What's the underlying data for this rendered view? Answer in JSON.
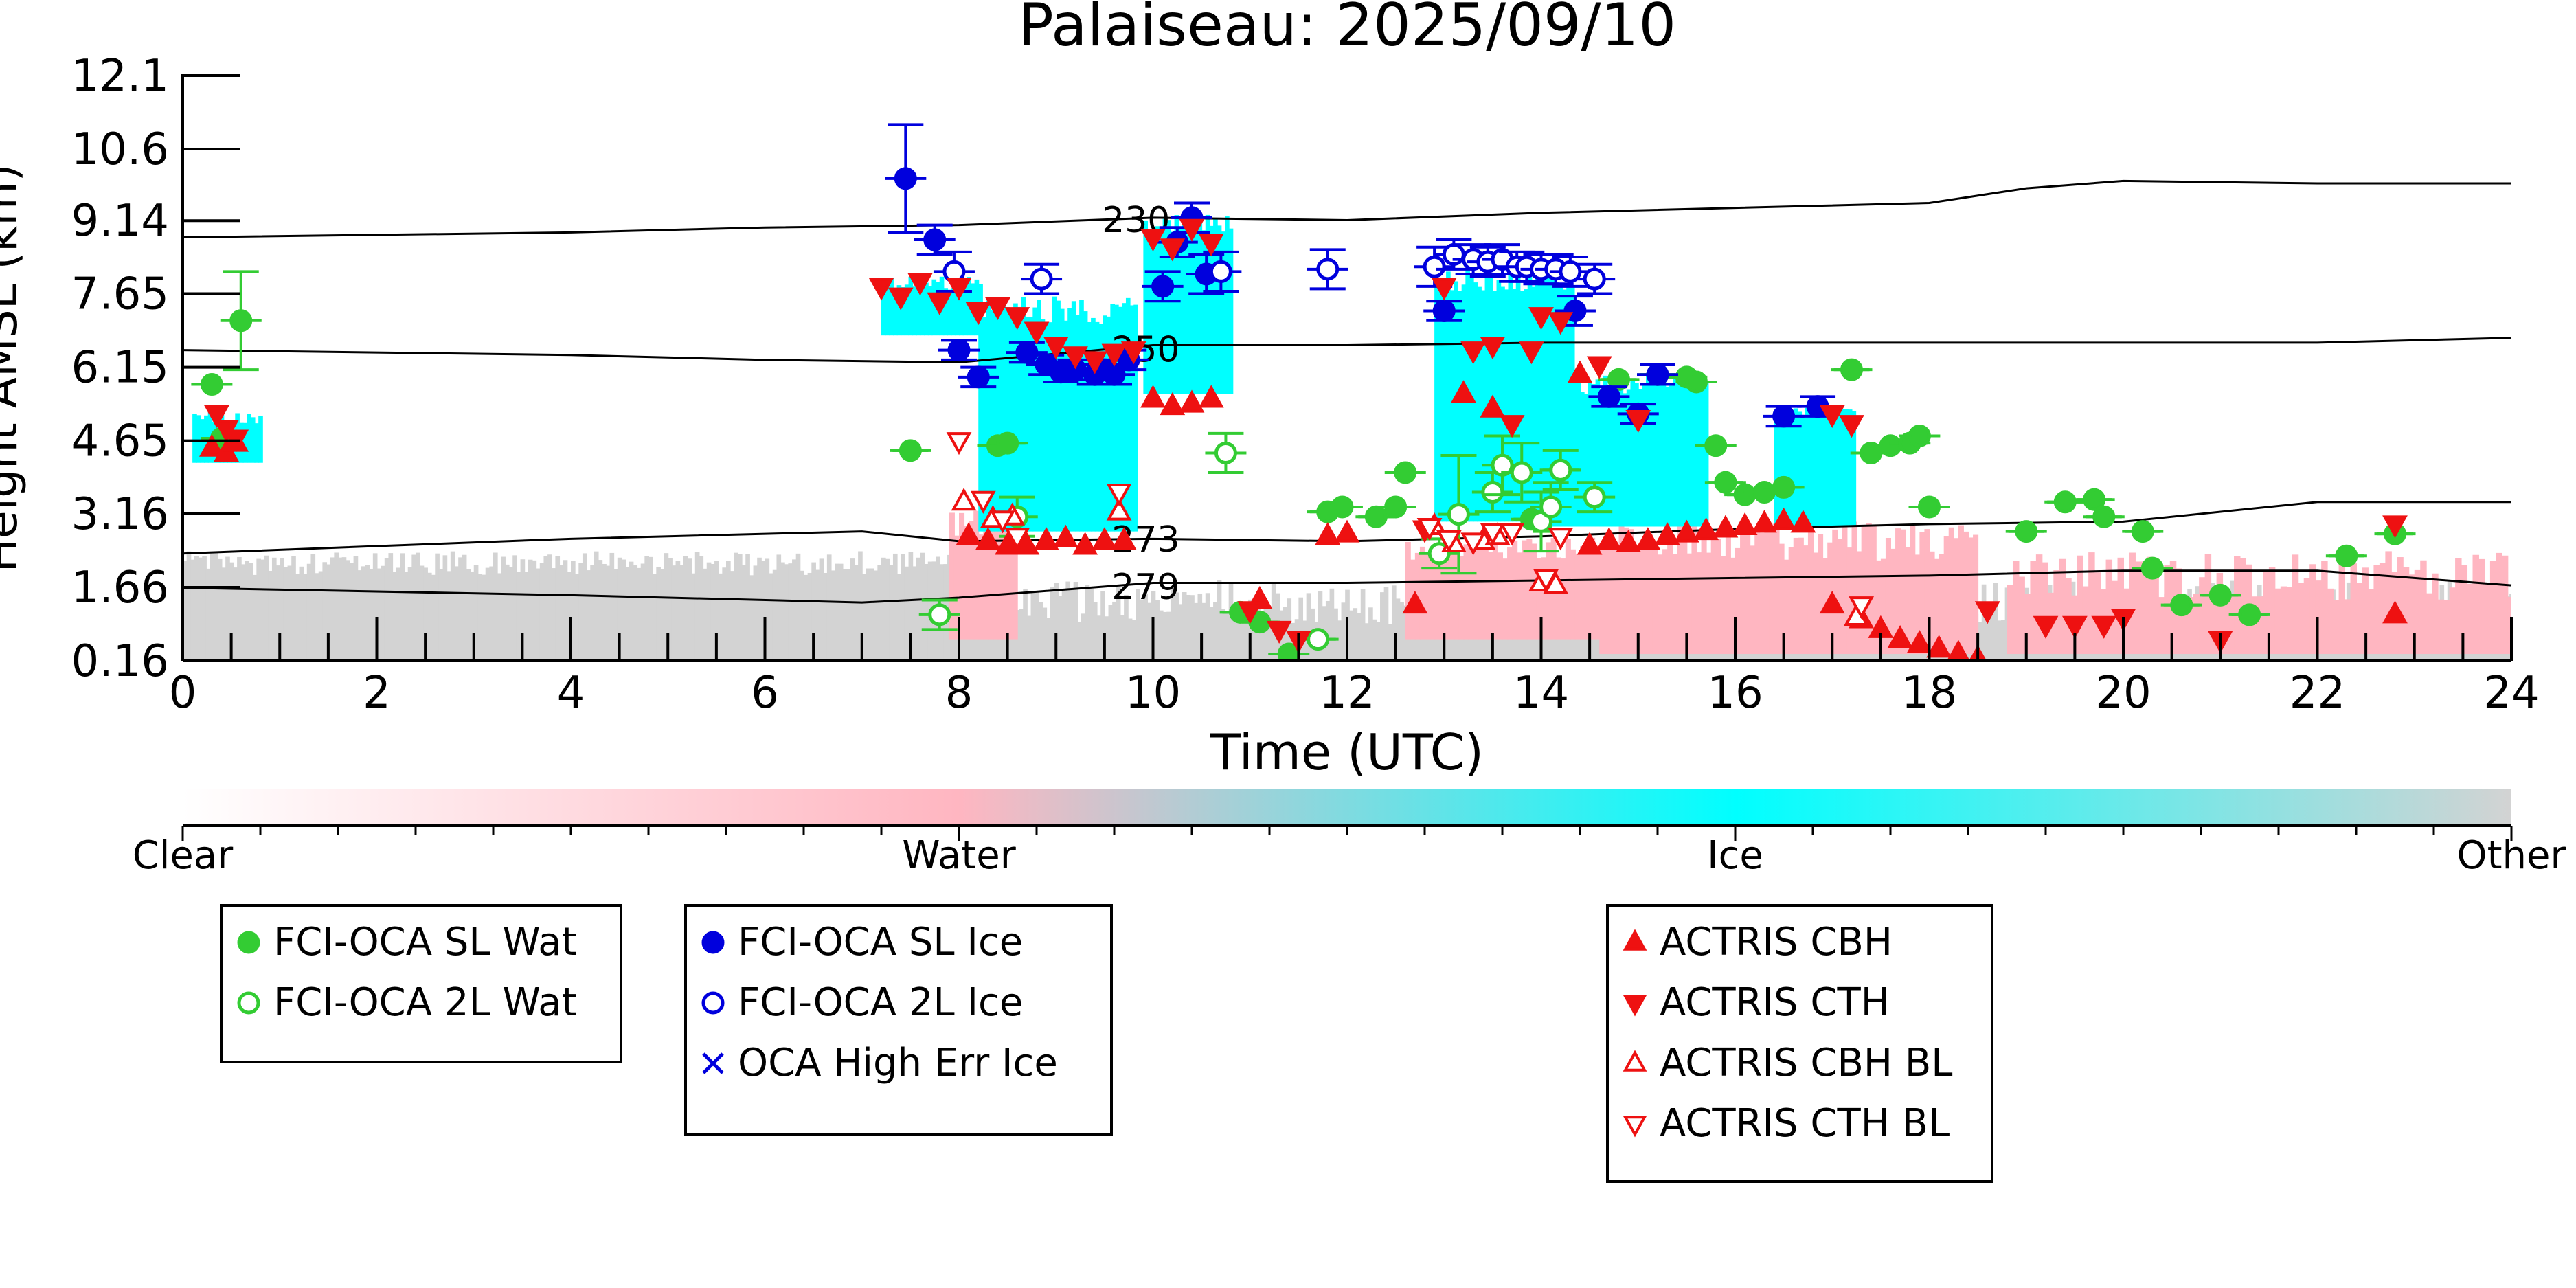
{
  "chart_data": {
    "type": "scatter",
    "title": "Palaiseau: 2025/09/10",
    "xlabel": "Time (UTC)",
    "ylabel": "Height AMSL (km)",
    "xlim": [
      0,
      24
    ],
    "ylim": [
      0.16,
      12.1
    ],
    "x_ticks": [
      "0",
      "2",
      "4",
      "6",
      "8",
      "10",
      "12",
      "14",
      "16",
      "18",
      "20",
      "22",
      "24"
    ],
    "y_ticks": [
      "0.16",
      "1.66",
      "3.16",
      "4.65",
      "6.15",
      "7.65",
      "9.14",
      "10.6",
      "12.1"
    ],
    "y_tick_values": [
      0.16,
      1.66,
      3.16,
      4.65,
      6.15,
      7.65,
      9.14,
      10.6,
      12.1
    ],
    "grid": false,
    "colorbar": {
      "labels": [
        "Clear",
        "Water",
        "Ice",
        "Other"
      ],
      "colors": {
        "clear": "#ffffff",
        "water": "#ffb6c1",
        "ice": "#00ffff",
        "other": "#d3d3d3"
      }
    },
    "contours": [
      {
        "label": "230",
        "label_x": 9.4,
        "points": [
          [
            0,
            8.8
          ],
          [
            4,
            8.9
          ],
          [
            6,
            9.0
          ],
          [
            8,
            9.05
          ],
          [
            10,
            9.2
          ],
          [
            12,
            9.15
          ],
          [
            14,
            9.3
          ],
          [
            18,
            9.5
          ],
          [
            19,
            9.8
          ],
          [
            20,
            9.95
          ],
          [
            22,
            9.9
          ],
          [
            24,
            9.9
          ]
        ]
      },
      {
        "label": "250",
        "label_x": 9.5,
        "points": [
          [
            0,
            6.5
          ],
          [
            4,
            6.4
          ],
          [
            6,
            6.3
          ],
          [
            8,
            6.25
          ],
          [
            10,
            6.6
          ],
          [
            12,
            6.6
          ],
          [
            14,
            6.65
          ],
          [
            18,
            6.65
          ],
          [
            22,
            6.65
          ],
          [
            24,
            6.75
          ]
        ]
      },
      {
        "label": "273",
        "label_x": 9.5,
        "points": [
          [
            0,
            2.35
          ],
          [
            4,
            2.65
          ],
          [
            7,
            2.8
          ],
          [
            8,
            2.6
          ],
          [
            10,
            2.65
          ],
          [
            12,
            2.6
          ],
          [
            14,
            2.7
          ],
          [
            16,
            2.85
          ],
          [
            18,
            2.95
          ],
          [
            20,
            3.0
          ],
          [
            22,
            3.4
          ],
          [
            24,
            3.4
          ]
        ]
      },
      {
        "label": "279",
        "label_x": 9.5,
        "points": [
          [
            0,
            1.65
          ],
          [
            4,
            1.5
          ],
          [
            7,
            1.35
          ],
          [
            8,
            1.45
          ],
          [
            10,
            1.75
          ],
          [
            12,
            1.75
          ],
          [
            14,
            1.8
          ],
          [
            16,
            1.85
          ],
          [
            18,
            1.9
          ],
          [
            20,
            2.0
          ],
          [
            22,
            2.0
          ],
          [
            24,
            1.7
          ]
        ]
      }
    ],
    "series": [
      {
        "name": "FCI-OCA SL Wat",
        "marker": "circle-filled",
        "color": "#33cc33",
        "points": [
          [
            0.3,
            5.8,
            0
          ],
          [
            0.6,
            7.1,
            1.0
          ],
          [
            0.4,
            4.7,
            0
          ],
          [
            7.5,
            4.45,
            0
          ],
          [
            8.4,
            4.55,
            0
          ],
          [
            8.5,
            4.6,
            0
          ],
          [
            10.9,
            1.15,
            0
          ],
          [
            11.1,
            0.95,
            0
          ],
          [
            11.4,
            0.3,
            0
          ],
          [
            11.8,
            3.2,
            0
          ],
          [
            11.95,
            3.3,
            0
          ],
          [
            12.3,
            3.1,
            0
          ],
          [
            12.5,
            3.3,
            0
          ],
          [
            12.6,
            4.0,
            0
          ],
          [
            13.9,
            3.05,
            0
          ],
          [
            14.2,
            4.05,
            0
          ],
          [
            14.8,
            5.9,
            0
          ],
          [
            15.2,
            6.0,
            0
          ],
          [
            15.5,
            5.95,
            0
          ],
          [
            15.6,
            5.85,
            0
          ],
          [
            15.8,
            4.55,
            0
          ],
          [
            15.9,
            3.8,
            0
          ],
          [
            16.1,
            3.55,
            0
          ],
          [
            16.3,
            3.6,
            0
          ],
          [
            16.5,
            3.7,
            0
          ],
          [
            17.2,
            6.1,
            0
          ],
          [
            17.4,
            4.4,
            0
          ],
          [
            17.6,
            4.55,
            0
          ],
          [
            17.8,
            4.6,
            0
          ],
          [
            17.9,
            4.75,
            0
          ],
          [
            18.0,
            3.3,
            0
          ],
          [
            19.0,
            2.8,
            0
          ],
          [
            19.4,
            3.4,
            0
          ],
          [
            19.7,
            3.45,
            0
          ],
          [
            19.8,
            3.1,
            0
          ],
          [
            20.2,
            2.8,
            0
          ],
          [
            20.3,
            2.05,
            0
          ],
          [
            20.6,
            1.3,
            0
          ],
          [
            21.0,
            1.5,
            0
          ],
          [
            21.3,
            1.1,
            0
          ],
          [
            22.3,
            2.3,
            0
          ],
          [
            22.8,
            2.75,
            0
          ]
        ]
      },
      {
        "name": "FCI-OCA 2L Wat",
        "marker": "circle-open",
        "color": "#33cc33",
        "points": [
          [
            7.8,
            1.1,
            0.3
          ],
          [
            8.6,
            3.1,
            0.4
          ],
          [
            10.75,
            4.4,
            0.4
          ],
          [
            11.7,
            0.6,
            0
          ],
          [
            12.95,
            2.35,
            0.3
          ],
          [
            13.15,
            3.15,
            1.2
          ],
          [
            13.5,
            3.6,
            0.4
          ],
          [
            13.6,
            4.15,
            0.6
          ],
          [
            13.8,
            4.0,
            0.6
          ],
          [
            14.0,
            3.0,
            0.6
          ],
          [
            14.1,
            3.3,
            0.5
          ],
          [
            14.2,
            4.05,
            0.4
          ],
          [
            14.55,
            3.5,
            0.3
          ]
        ]
      },
      {
        "name": "FCI-OCA SL Ice",
        "marker": "circle-filled",
        "color": "#0000dd",
        "points": [
          [
            7.45,
            10.0,
            1.1
          ],
          [
            7.75,
            8.75,
            0.3
          ],
          [
            8.0,
            6.5,
            0.2
          ],
          [
            8.2,
            5.95,
            0.2
          ],
          [
            8.7,
            6.45,
            0.2
          ],
          [
            8.9,
            6.2,
            0.2
          ],
          [
            9.05,
            6.05,
            0.2
          ],
          [
            9.2,
            6.1,
            0.2
          ],
          [
            9.4,
            6.0,
            0.2
          ],
          [
            9.5,
            6.1,
            0.2
          ],
          [
            9.6,
            6.0,
            0.2
          ],
          [
            9.75,
            6.3,
            0.2
          ],
          [
            10.1,
            7.8,
            0.3
          ],
          [
            10.25,
            8.7,
            0.3
          ],
          [
            10.4,
            9.2,
            0.3
          ],
          [
            10.55,
            8.05,
            0.4
          ],
          [
            13.0,
            7.3,
            0.2
          ],
          [
            14.35,
            7.3,
            0.3
          ],
          [
            14.7,
            5.55,
            0.2
          ],
          [
            15.0,
            5.2,
            0.2
          ],
          [
            15.2,
            6.0,
            0.2
          ],
          [
            16.5,
            5.15,
            0.2
          ],
          [
            16.85,
            5.35,
            0.2
          ]
        ]
      },
      {
        "name": "FCI-OCA 2L Ice",
        "marker": "circle-open",
        "color": "#0000dd",
        "points": [
          [
            7.95,
            8.1,
            0.4
          ],
          [
            8.85,
            7.95,
            0.3
          ],
          [
            10.7,
            8.1,
            0.4
          ],
          [
            11.8,
            8.15,
            0.4
          ],
          [
            12.9,
            8.2,
            0.4
          ],
          [
            13.1,
            8.45,
            0.3
          ],
          [
            13.3,
            8.35,
            0.3
          ],
          [
            13.45,
            8.3,
            0.3
          ],
          [
            13.6,
            8.35,
            0.3
          ],
          [
            13.75,
            8.2,
            0.3
          ],
          [
            13.85,
            8.2,
            0.3
          ],
          [
            14.0,
            8.15,
            0.3
          ],
          [
            14.15,
            8.15,
            0.3
          ],
          [
            14.3,
            8.1,
            0.3
          ],
          [
            14.55,
            7.95,
            0.3
          ]
        ]
      },
      {
        "name": "OCA High Err Ice",
        "marker": "x",
        "color": "#0000dd",
        "points": []
      },
      {
        "name": "ACTRIS CBH",
        "marker": "triangle-up-filled",
        "color": "#ee1111",
        "points": [
          [
            0.3,
            4.5
          ],
          [
            0.45,
            4.4
          ],
          [
            0.55,
            4.6
          ],
          [
            8.1,
            2.7
          ],
          [
            8.3,
            2.6
          ],
          [
            8.5,
            2.5
          ],
          [
            8.7,
            2.5
          ],
          [
            8.9,
            2.6
          ],
          [
            9.1,
            2.65
          ],
          [
            9.3,
            2.5
          ],
          [
            9.5,
            2.6
          ],
          [
            9.7,
            2.6
          ],
          [
            10.0,
            5.5
          ],
          [
            10.2,
            5.35
          ],
          [
            10.4,
            5.4
          ],
          [
            10.6,
            5.5
          ],
          [
            11.1,
            1.4
          ],
          [
            11.8,
            2.7
          ],
          [
            12.0,
            2.75
          ],
          [
            12.7,
            1.3
          ],
          [
            13.2,
            5.6
          ],
          [
            13.5,
            5.3
          ],
          [
            14.4,
            6.0
          ],
          [
            14.5,
            2.5
          ],
          [
            14.7,
            2.6
          ],
          [
            14.9,
            2.55
          ],
          [
            15.1,
            2.6
          ],
          [
            15.3,
            2.7
          ],
          [
            15.5,
            2.75
          ],
          [
            15.7,
            2.8
          ],
          [
            15.9,
            2.85
          ],
          [
            16.1,
            2.9
          ],
          [
            16.3,
            2.95
          ],
          [
            16.5,
            3.0
          ],
          [
            16.7,
            2.95
          ],
          [
            17.0,
            1.3
          ],
          [
            17.3,
            1.0
          ],
          [
            17.5,
            0.8
          ],
          [
            17.7,
            0.6
          ],
          [
            17.9,
            0.5
          ],
          [
            18.1,
            0.4
          ],
          [
            18.3,
            0.3
          ],
          [
            18.5,
            0.2
          ],
          [
            22.8,
            1.1
          ]
        ]
      },
      {
        "name": "ACTRIS CTH",
        "marker": "triangle-down-filled",
        "color": "#ee1111",
        "points": [
          [
            0.35,
            5.2
          ],
          [
            0.45,
            4.9
          ],
          [
            0.55,
            4.7
          ],
          [
            7.2,
            7.8
          ],
          [
            7.4,
            7.6
          ],
          [
            7.6,
            7.9
          ],
          [
            7.8,
            7.5
          ],
          [
            8.0,
            7.8
          ],
          [
            8.2,
            7.3
          ],
          [
            8.4,
            7.4
          ],
          [
            8.6,
            7.2
          ],
          [
            8.8,
            6.9
          ],
          [
            9.0,
            6.6
          ],
          [
            9.2,
            6.4
          ],
          [
            9.4,
            6.3
          ],
          [
            9.6,
            6.45
          ],
          [
            9.8,
            6.5
          ],
          [
            10.0,
            8.8
          ],
          [
            10.2,
            8.6
          ],
          [
            10.4,
            9.0
          ],
          [
            10.6,
            8.7
          ],
          [
            11.0,
            1.2
          ],
          [
            11.3,
            0.8
          ],
          [
            11.5,
            0.6
          ],
          [
            12.8,
            2.85
          ],
          [
            13.0,
            7.8
          ],
          [
            13.3,
            6.5
          ],
          [
            13.5,
            6.6
          ],
          [
            13.7,
            5.0
          ],
          [
            13.9,
            6.5
          ],
          [
            14.0,
            7.2
          ],
          [
            14.2,
            7.1
          ],
          [
            14.6,
            6.2
          ],
          [
            15.0,
            5.1
          ],
          [
            17.0,
            5.2
          ],
          [
            17.2,
            5.0
          ],
          [
            18.6,
            1.2
          ],
          [
            19.2,
            0.9
          ],
          [
            19.5,
            0.9
          ],
          [
            19.8,
            0.9
          ],
          [
            20.0,
            1.05
          ],
          [
            21.0,
            0.6
          ],
          [
            22.8,
            2.95
          ]
        ]
      },
      {
        "name": "ACTRIS CBH BL",
        "marker": "triangle-up-open",
        "color": "#ee1111",
        "points": [
          [
            8.05,
            3.4
          ],
          [
            8.35,
            3.05
          ],
          [
            8.55,
            3.1
          ],
          [
            9.65,
            3.2
          ],
          [
            12.9,
            2.9
          ],
          [
            13.1,
            2.55
          ],
          [
            13.4,
            2.6
          ],
          [
            13.55,
            2.7
          ],
          [
            14.0,
            1.75
          ],
          [
            14.15,
            1.7
          ],
          [
            17.25,
            1.05
          ]
        ]
      },
      {
        "name": "ACTRIS CTH BL",
        "marker": "triangle-down-open",
        "color": "#ee1111",
        "points": [
          [
            8.0,
            4.65
          ],
          [
            8.25,
            3.45
          ],
          [
            8.45,
            3.05
          ],
          [
            8.6,
            2.7
          ],
          [
            9.65,
            3.6
          ],
          [
            12.85,
            2.9
          ],
          [
            13.05,
            2.65
          ],
          [
            13.3,
            2.6
          ],
          [
            13.5,
            2.8
          ],
          [
            13.7,
            2.8
          ],
          [
            14.05,
            1.85
          ],
          [
            14.2,
            2.7
          ],
          [
            17.3,
            1.3
          ]
        ]
      }
    ],
    "legends": [
      [
        "FCI-OCA SL Wat",
        "FCI-OCA 2L Wat"
      ],
      [
        "FCI-OCA SL Ice",
        "FCI-OCA 2L Ice",
        "OCA High Err Ice"
      ],
      [
        "ACTRIS CBH",
        "ACTRIS CTH",
        "ACTRIS CBH BL",
        "ACTRIS CTH BL"
      ]
    ],
    "legend_placement": "below"
  }
}
